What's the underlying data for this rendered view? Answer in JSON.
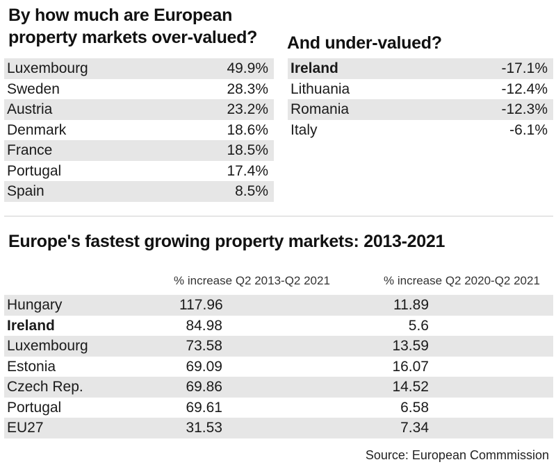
{
  "chart_data": [
    {
      "type": "table",
      "title": "By how much are European property markets over-valued?",
      "rows": [
        {
          "country": "Luxembourg",
          "value": "49.9%"
        },
        {
          "country": "Sweden",
          "value": "28.3%"
        },
        {
          "country": "Austria",
          "value": "23.2%"
        },
        {
          "country": "Denmark",
          "value": "18.6%"
        },
        {
          "country": "France",
          "value": "18.5%"
        },
        {
          "country": "Portugal",
          "value": "17.4%"
        },
        {
          "country": "Spain",
          "value": "8.5%"
        }
      ]
    },
    {
      "type": "table",
      "title": "And under-valued?",
      "rows": [
        {
          "country": "Ireland",
          "value": "-17.1%",
          "bold": true
        },
        {
          "country": "Lithuania",
          "value": "-12.4%"
        },
        {
          "country": "Romania",
          "value": "-12.3%"
        },
        {
          "country": "Italy",
          "value": "-6.1%"
        }
      ]
    },
    {
      "type": "table",
      "title": "Europe's fastest growing property markets: 2013-2021",
      "columns": [
        "% increase Q2 2013-Q2 2021",
        "% increase Q2 2020-Q2 2021"
      ],
      "rows": [
        {
          "country": "Hungary",
          "v1": "117.96",
          "v2": "11.89"
        },
        {
          "country": "Ireland",
          "v1": "84.98",
          "v2": "5.6",
          "bold": true
        },
        {
          "country": "Luxembourg",
          "v1": "73.58",
          "v2": "13.59"
        },
        {
          "country": "Estonia",
          "v1": "69.09",
          "v2": "16.07"
        },
        {
          "country": "Czech Rep.",
          "v1": "69.86",
          "v2": "14.52"
        },
        {
          "country": "Portugal",
          "v1": "69.61",
          "v2": "6.58"
        },
        {
          "country": "EU27",
          "v1": "31.53",
          "v2": "7.34"
        }
      ]
    }
  ],
  "source": "Source: European Commmission",
  "colors": {
    "row_shade": "#e6e6e6",
    "text": "#1a1a1a"
  }
}
